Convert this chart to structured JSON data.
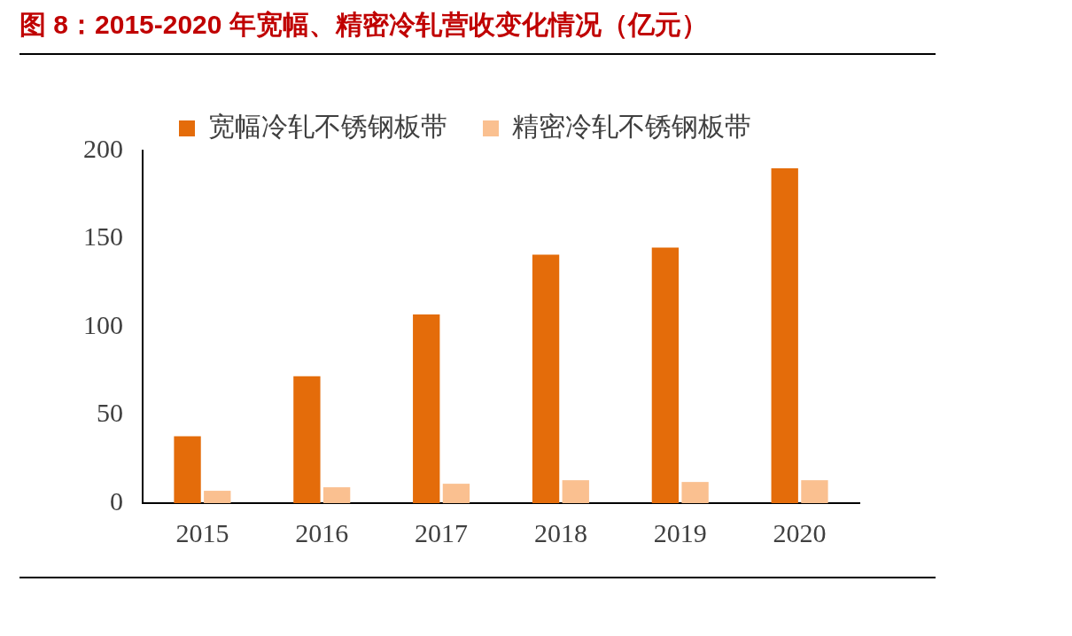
{
  "chart_data": {
    "type": "bar",
    "title": "图 8：2015-2020 年宽幅、精密冷轧营收变化情况（亿元）",
    "categories": [
      "2015",
      "2016",
      "2017",
      "2018",
      "2019",
      "2020"
    ],
    "series": [
      {
        "name": "宽幅冷轧不锈钢板带",
        "color": "#e46c0a",
        "values": [
          38,
          72,
          107,
          141,
          145,
          190
        ]
      },
      {
        "name": "精密冷轧不锈钢板带",
        "color": "#fac090",
        "values": [
          7,
          9,
          11,
          13,
          12,
          13
        ]
      }
    ],
    "ylim": [
      0,
      200
    ],
    "yticks": [
      0,
      50,
      100,
      150,
      200
    ],
    "grid": false,
    "legend": "top"
  }
}
